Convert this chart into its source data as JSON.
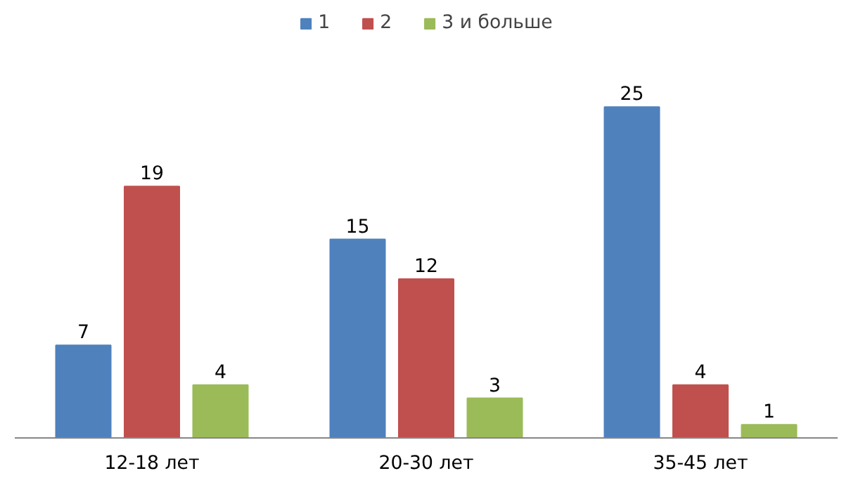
{
  "chart_data": {
    "type": "bar",
    "categories": [
      "12-18 лет",
      "20-30 лет",
      "35-45 лет"
    ],
    "series": [
      {
        "name": "1",
        "color": "#4f81bd",
        "values": [
          7,
          15,
          25
        ]
      },
      {
        "name": "2",
        "color": "#c0504d",
        "values": [
          19,
          12,
          4
        ]
      },
      {
        "name": "3 и больше",
        "color": "#9bbb59",
        "values": [
          4,
          3,
          1
        ]
      }
    ],
    "data_labels": true,
    "legend": "top",
    "grid": false
  }
}
